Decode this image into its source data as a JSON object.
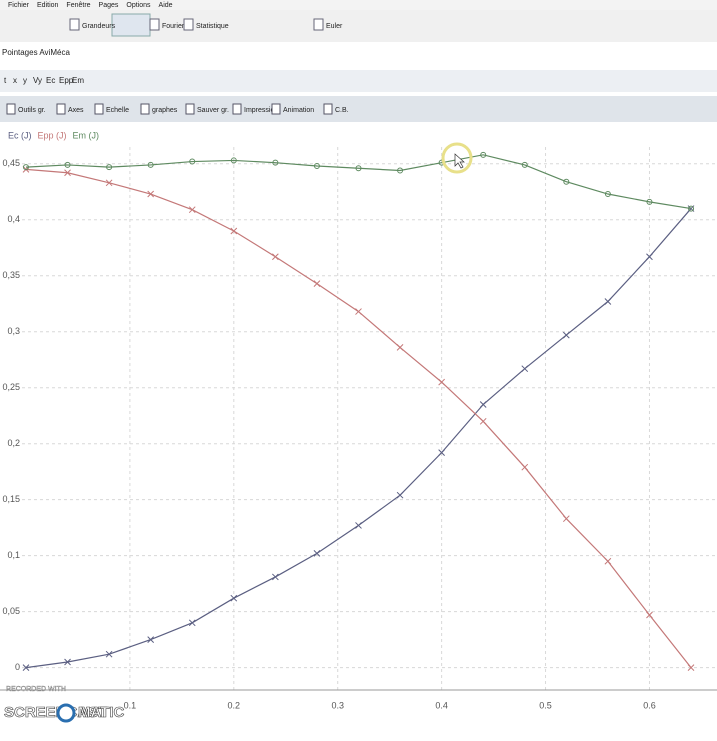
{
  "menu": [
    "Fichier",
    "Edition",
    "Fenêtre",
    "Pages",
    "Options",
    "Aide"
  ],
  "toolbar": [
    "Grandeurs",
    "Fourier",
    "Statistique",
    "Euler"
  ],
  "window_title": "Pointages AviMéca",
  "variables": [
    "t",
    "x",
    "y",
    "Vy",
    "Ec",
    "Epp",
    "Em"
  ],
  "graph_toolbar": [
    "Outils gr.",
    "Axes",
    "Echelle",
    "graphes",
    "Sauver gr.",
    "Impression",
    "Animation",
    "C.B."
  ],
  "watermark": {
    "line1": "RECORDED WITH",
    "line2": "SCREENCAST",
    "line3": "MATIC"
  },
  "chart_data": {
    "type": "line",
    "x": [
      0,
      0.04,
      0.08,
      0.12,
      0.16,
      0.2,
      0.24,
      0.28,
      0.32,
      0.36,
      0.4,
      0.44,
      0.48,
      0.52,
      0.56,
      0.6,
      0.64
    ],
    "series": [
      {
        "name": "Ec (J)",
        "color": "#5b5f82",
        "marker": "cross",
        "values": [
          0,
          0.005,
          0.012,
          0.025,
          0.04,
          0.062,
          0.081,
          0.102,
          0.127,
          0.154,
          0.192,
          0.235,
          0.267,
          0.297,
          0.327,
          0.367,
          0.41
        ]
      },
      {
        "name": "Epp (J)",
        "color": "#c47878",
        "marker": "cross",
        "values": [
          0.445,
          0.442,
          0.433,
          0.423,
          0.409,
          0.39,
          0.367,
          0.343,
          0.318,
          0.286,
          0.255,
          0.22,
          0.179,
          0.133,
          0.095,
          0.047,
          0
        ]
      },
      {
        "name": "Em (J)",
        "color": "#5e8a60",
        "marker": "circle",
        "values": [
          0.447,
          0.449,
          0.447,
          0.449,
          0.452,
          0.453,
          0.451,
          0.448,
          0.446,
          0.444,
          0.451,
          0.458,
          0.449,
          0.434,
          0.423,
          0.416,
          0.41
        ]
      }
    ],
    "xlim": [
      -0.025,
      0.665
    ],
    "xticks": [
      0.1,
      0.2,
      0.3,
      0.4,
      0.5,
      0.6
    ],
    "ylim": [
      -0.02,
      0.465
    ],
    "yticks": [
      0,
      {
        "value": 0.05,
        "label": "0,05"
      },
      {
        "value": 0.1,
        "label": "0,1"
      },
      {
        "value": 0.15,
        "label": "0,15"
      },
      {
        "value": 0.2,
        "label": "0,2"
      },
      {
        "value": 0.25,
        "label": "0,25"
      },
      {
        "value": 0.3,
        "label": "0,3"
      },
      {
        "value": 0.35,
        "label": "0,35"
      },
      {
        "value": 0.4,
        "label": "0,4"
      },
      {
        "value": 0.45,
        "label": "0,45"
      }
    ],
    "grid": true
  }
}
